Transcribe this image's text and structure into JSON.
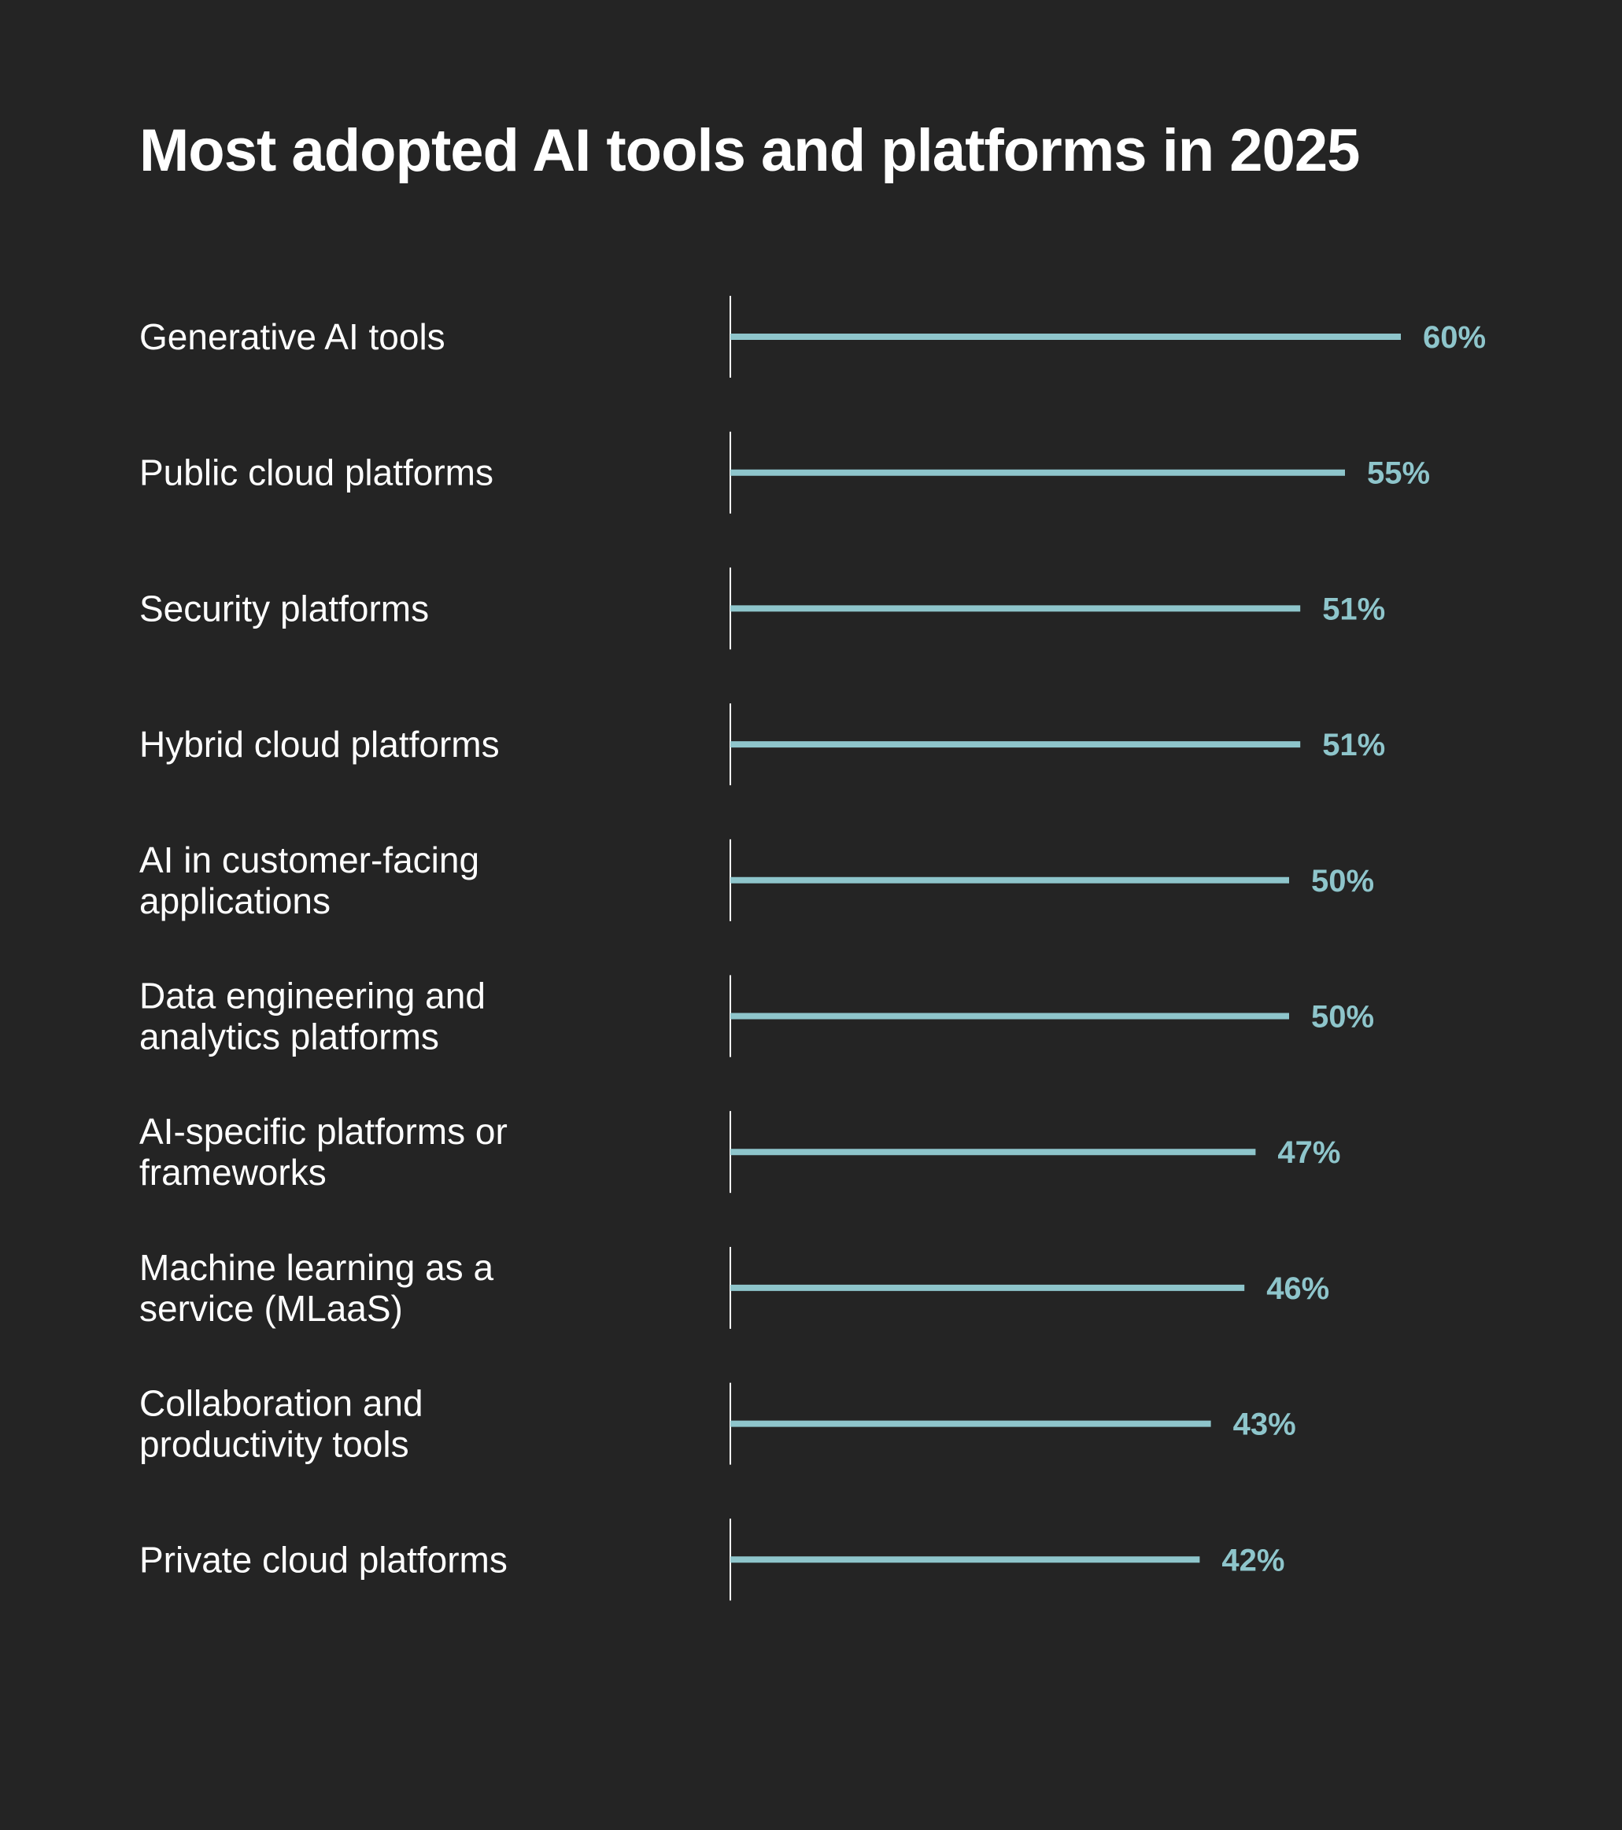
{
  "chart_data": {
    "type": "bar",
    "orientation": "horizontal",
    "title": "Most adopted AI tools and platforms in 2025",
    "categories": [
      "Generative AI tools",
      "Public cloud platforms",
      "Security platforms",
      "Hybrid cloud platforms",
      "AI in customer-facing applications",
      "Data engineering and analytics platforms",
      "AI-specific platforms or frameworks",
      "Machine learning as a service (MLaaS)",
      "Collaboration and productivity tools",
      "Private cloud platforms"
    ],
    "category_lines": [
      [
        "Generative AI tools"
      ],
      [
        "Public cloud platforms"
      ],
      [
        "Security platforms"
      ],
      [
        "Hybrid cloud platforms"
      ],
      [
        "AI in customer-facing",
        "applications"
      ],
      [
        "Data engineering and",
        "analytics platforms"
      ],
      [
        "AI-specific platforms or",
        "frameworks"
      ],
      [
        "Machine learning as a",
        "service (MLaaS)"
      ],
      [
        "Collaboration and",
        "productivity tools"
      ],
      [
        "Private cloud platforms"
      ]
    ],
    "values": [
      60,
      55,
      51,
      51,
      50,
      50,
      47,
      46,
      43,
      42
    ],
    "value_labels": [
      "60%",
      "55%",
      "51%",
      "51%",
      "50%",
      "50%",
      "47%",
      "46%",
      "43%",
      "42%"
    ],
    "unit": "%",
    "xlim": [
      0,
      60
    ],
    "grid": false,
    "legend": "none"
  },
  "colors": {
    "background": "#242424",
    "bar": "#8ec5cb",
    "text": "#ffffff",
    "value_text": "#8ec5cb"
  }
}
